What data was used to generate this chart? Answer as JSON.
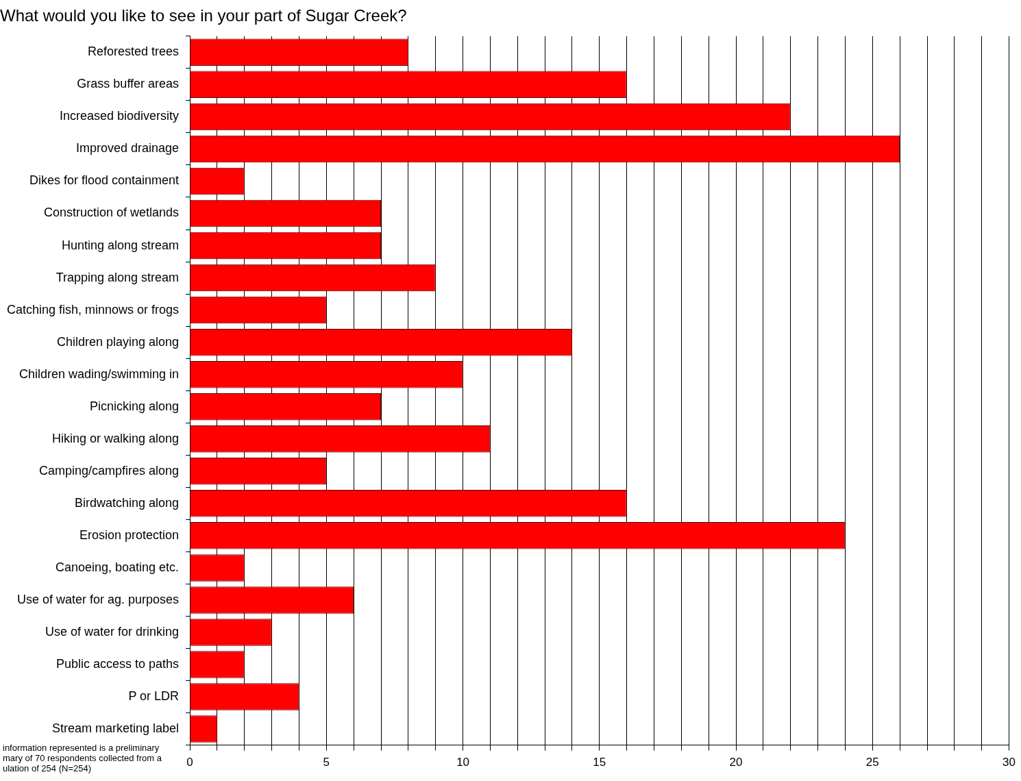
{
  "chart_data": {
    "type": "bar",
    "orientation": "horizontal",
    "title": "What would you like to see in your part of Sugar Creek?",
    "categories": [
      "Reforested trees",
      "Grass buffer areas",
      "Increased biodiversity",
      "Improved drainage",
      "Dikes for flood containment",
      "Construction of wetlands",
      "Hunting along stream",
      "Trapping along stream",
      "Catching fish, minnows or frogs",
      "Children playing along",
      "Children wading/swimming in",
      "Picnicking along",
      "Hiking or walking along",
      "Camping/campfires along",
      "Birdwatching along",
      "Erosion protection",
      "Canoeing, boating etc.",
      "Use of water for ag. purposes",
      "Use of water for drinking",
      "Public access to paths",
      "P or LDR",
      "Stream marketing label"
    ],
    "values": [
      8,
      16,
      22,
      26,
      2,
      7,
      7,
      9,
      5,
      14,
      10,
      7,
      11,
      5,
      16,
      24,
      2,
      6,
      3,
      2,
      4,
      1
    ],
    "color": "#ff0000",
    "xlim": [
      0,
      30
    ],
    "xticks": [
      0,
      {
        "value": 1,
        "label": null
      },
      {
        "value": 2,
        "label": null
      },
      {
        "value": 3,
        "label": null
      },
      {
        "value": 4,
        "label": null
      },
      5,
      {
        "value": 6,
        "label": null
      },
      {
        "value": 7,
        "label": null
      },
      {
        "value": 8,
        "label": null
      },
      {
        "value": 9,
        "label": null
      },
      10,
      {
        "value": 11,
        "label": null
      },
      {
        "value": 12,
        "label": null
      },
      {
        "value": 13,
        "label": null
      },
      {
        "value": 14,
        "label": null
      },
      15,
      {
        "value": 16,
        "label": null
      },
      {
        "value": 17,
        "label": null
      },
      {
        "value": 18,
        "label": null
      },
      {
        "value": 19,
        "label": null
      },
      20,
      {
        "value": 21,
        "label": null
      },
      {
        "value": 22,
        "label": null
      },
      {
        "value": 23,
        "label": null
      },
      {
        "value": 24,
        "label": null
      },
      25,
      {
        "value": 26,
        "label": null
      },
      {
        "value": 27,
        "label": null
      },
      {
        "value": 28,
        "label": null
      },
      {
        "value": 29,
        "label": null
      },
      30
    ],
    "grid": "x",
    "legend": false,
    "annotations": [
      "information represented is a preliminary\nmary of 70 respondents collected from a\nulation of 254 (N=254)"
    ]
  }
}
